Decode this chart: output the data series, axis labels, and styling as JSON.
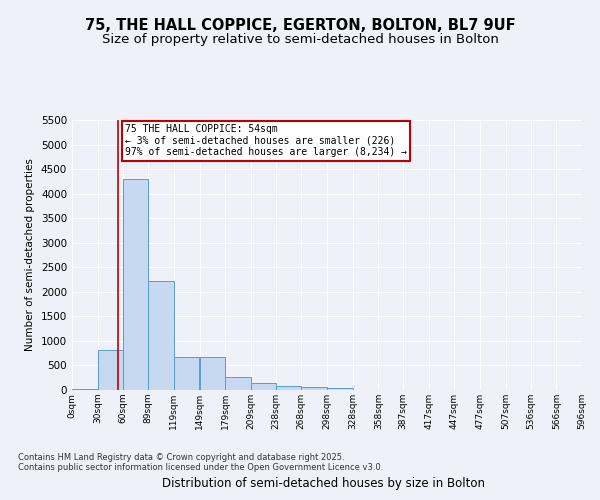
{
  "title_line1": "75, THE HALL COPPICE, EGERTON, BOLTON, BL7 9UF",
  "title_line2": "Size of property relative to semi-detached houses in Bolton",
  "xlabel": "Distribution of semi-detached houses by size in Bolton",
  "ylabel": "Number of semi-detached properties",
  "annotation_title": "75 THE HALL COPPICE: 54sqm",
  "annotation_line2": "← 3% of semi-detached houses are smaller (226)",
  "annotation_line3": "97% of semi-detached houses are larger (8,234) →",
  "footnote1": "Contains HM Land Registry data © Crown copyright and database right 2025.",
  "footnote2": "Contains public sector information licensed under the Open Government Licence v3.0.",
  "property_size": 54,
  "bin_edges": [
    0,
    30,
    60,
    89,
    119,
    149,
    179,
    209,
    238,
    268,
    298,
    328,
    358,
    387,
    417,
    447,
    477,
    507,
    536,
    566,
    596
  ],
  "bin_labels": [
    "0sqm",
    "30sqm",
    "60sqm",
    "89sqm",
    "119sqm",
    "149sqm",
    "179sqm",
    "209sqm",
    "238sqm",
    "268sqm",
    "298sqm",
    "328sqm",
    "358sqm",
    "387sqm",
    "417sqm",
    "447sqm",
    "477sqm",
    "507sqm",
    "536sqm",
    "566sqm",
    "596sqm"
  ],
  "bar_heights": [
    30,
    820,
    4300,
    2230,
    680,
    680,
    270,
    140,
    80,
    60,
    40,
    0,
    0,
    0,
    0,
    0,
    0,
    0,
    0,
    0
  ],
  "bar_color": "#c6d9f0",
  "bar_edge_color": "#5b9bd5",
  "vline_x": 54,
  "vline_color": "#c00000",
  "annotation_box_color": "#c00000",
  "ylim": [
    0,
    5500
  ],
  "yticks": [
    0,
    500,
    1000,
    1500,
    2000,
    2500,
    3000,
    3500,
    4000,
    4500,
    5000,
    5500
  ],
  "bg_color": "#eef2f8",
  "grid_color": "#ffffff",
  "title_fontsize": 10.5,
  "subtitle_fontsize": 9.5
}
